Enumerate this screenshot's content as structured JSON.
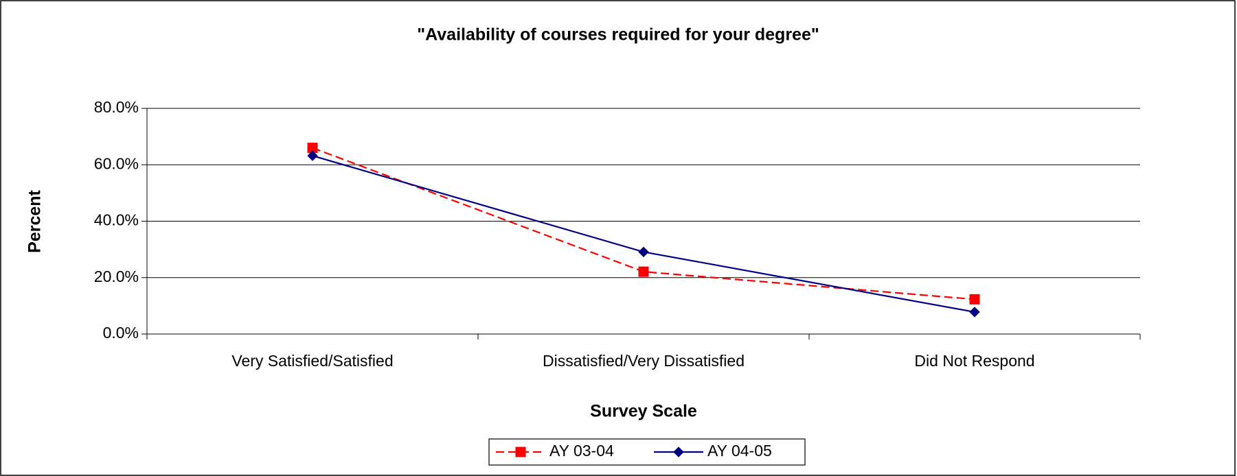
{
  "chart_data": {
    "type": "line",
    "title": "\"Availability of courses required for your degree\"",
    "xlabel": "Survey Scale",
    "ylabel": "Percent",
    "categories": [
      "Very Satisfied/Satisfied",
      "Dissatisfied/Very Dissatisfied",
      "Did Not Respond"
    ],
    "series": [
      {
        "name": "AY 03-04",
        "color": "#ff0000",
        "marker": "square",
        "dash": true,
        "values": [
          66.0,
          22.1,
          12.3
        ]
      },
      {
        "name": "AY 04-05",
        "color": "#000080",
        "marker": "diamond",
        "dash": false,
        "values": [
          63.2,
          29.1,
          7.8
        ]
      }
    ],
    "ylim": [
      0,
      80
    ],
    "yticks": [
      {
        "value": 0,
        "label": "0.0%"
      },
      {
        "value": 20,
        "label": "20.0%"
      },
      {
        "value": 40,
        "label": "40.0%"
      },
      {
        "value": 60,
        "label": "60.0%"
      },
      {
        "value": 80,
        "label": "80.0%"
      }
    ],
    "grid": true,
    "legend": "bottom"
  }
}
